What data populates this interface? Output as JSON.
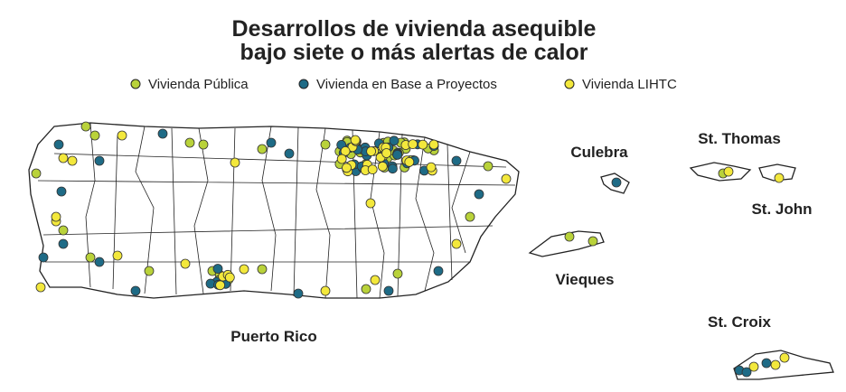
{
  "title": [
    "Desarrollos de vivienda asequible",
    "bajo siete o más alertas de calor"
  ],
  "legend": [
    {
      "label": "Vivienda Pública",
      "color": "#b9d23a"
    },
    {
      "label": "Vivienda en Base a Proyectos",
      "color": "#1e6b86"
    },
    {
      "label": "Vivienda LIHTC",
      "color": "#f3e83c"
    }
  ],
  "places": [
    "Puerto Rico",
    "Culebra",
    "Vieques",
    "St. Thomas",
    "St. John",
    "St. Croix"
  ]
}
